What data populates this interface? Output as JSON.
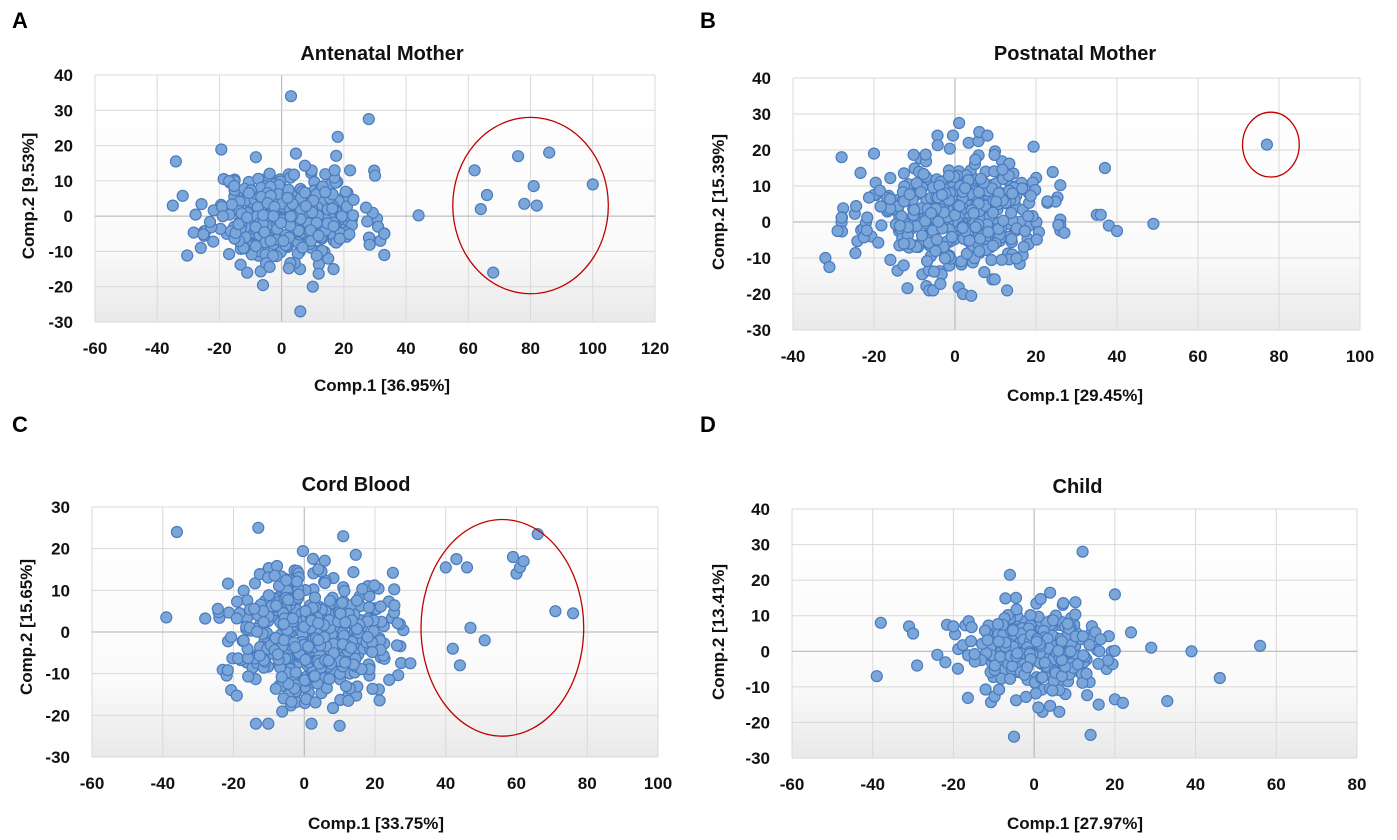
{
  "chart_data": [
    {
      "panel": "A",
      "type": "scatter",
      "title": "Antenatal Mother",
      "xlabel": "Comp.1 [36.95%]",
      "ylabel": "Comp.2 [9.53%]",
      "xlim": [
        -60,
        120
      ],
      "ylim": [
        -30,
        40
      ],
      "xticks": [
        -60,
        -40,
        -20,
        0,
        20,
        40,
        60,
        80,
        100,
        120
      ],
      "yticks": [
        -30,
        -20,
        -10,
        0,
        10,
        20,
        30,
        40
      ],
      "grid": true,
      "cluster": {
        "seed": 11,
        "n": 420,
        "cx": 2,
        "cy": 0,
        "sx": 12,
        "sy": 6.5,
        "xmin": -34,
        "xmax": 33,
        "ymin": -22,
        "ymax": 20
      },
      "points": [
        [
          3,
          34
        ],
        [
          28,
          27.5
        ],
        [
          18,
          22.5
        ],
        [
          -34,
          15.5
        ],
        [
          -35,
          3
        ],
        [
          44,
          0.2
        ],
        [
          31,
          -3
        ],
        [
          33,
          -5
        ],
        [
          33,
          -11
        ],
        [
          6,
          -27
        ],
        [
          10,
          -20
        ],
        [
          -26,
          -9
        ],
        [
          17,
          13
        ],
        [
          22,
          13
        ],
        [
          62,
          13
        ],
        [
          66,
          6
        ],
        [
          64,
          2
        ],
        [
          68,
          -16
        ],
        [
          76,
          17
        ],
        [
          78,
          3.5
        ],
        [
          81,
          8.5
        ],
        [
          82,
          3
        ],
        [
          86,
          18
        ],
        [
          100,
          9
        ]
      ],
      "highlight": {
        "cx": 80,
        "cy": 3,
        "rx": 25,
        "ry": 25
      },
      "marker_color": "#7aa6da",
      "marker_edge": "#4a7bbd",
      "highlight_color": "#c00000"
    },
    {
      "panel": "B",
      "type": "scatter",
      "title": "Postnatal Mother",
      "xlabel": "Comp.1 [29.45%]",
      "ylabel": "Comp.2 [15.39%]",
      "xlim": [
        -40,
        100
      ],
      "ylim": [
        -30,
        40
      ],
      "xticks": [
        -40,
        -20,
        0,
        20,
        40,
        60,
        80,
        100
      ],
      "yticks": [
        -30,
        -20,
        -10,
        0,
        10,
        20,
        30,
        40
      ],
      "grid": true,
      "cluster": {
        "seed": 23,
        "n": 460,
        "cx": 0,
        "cy": 2,
        "sx": 11,
        "sy": 8,
        "xmin": -28,
        "xmax": 26,
        "ymin": -19,
        "ymax": 24
      },
      "points": [
        [
          -32,
          -10
        ],
        [
          -31,
          -12.5
        ],
        [
          -29,
          -2.5
        ],
        [
          -28,
          18
        ],
        [
          -20,
          19
        ],
        [
          1,
          27.5
        ],
        [
          6,
          25
        ],
        [
          8,
          24
        ],
        [
          2,
          -20
        ],
        [
          4,
          -20.5
        ],
        [
          27,
          -3
        ],
        [
          35,
          2
        ],
        [
          36,
          2
        ],
        [
          37,
          15
        ],
        [
          38,
          -1
        ],
        [
          40,
          -2.5
        ],
        [
          49,
          -0.5
        ],
        [
          77,
          21.5
        ]
      ],
      "highlight": {
        "cx": 78,
        "cy": 21.5,
        "rx": 7,
        "ry": 9
      },
      "marker_color": "#7aa6da",
      "marker_edge": "#4a7bbd",
      "highlight_color": "#c00000"
    },
    {
      "panel": "C",
      "type": "scatter",
      "title": "Cord Blood",
      "xlabel": "Comp.1 [33.75%]",
      "ylabel": "Comp.2 [15.65%]",
      "xlim": [
        -60,
        100
      ],
      "ylim": [
        -30,
        30
      ],
      "xticks": [
        -60,
        -40,
        -20,
        0,
        20,
        40,
        60,
        80,
        100
      ],
      "yticks": [
        -30,
        -20,
        -10,
        0,
        10,
        20,
        30
      ],
      "grid": true,
      "cluster": {
        "seed": 37,
        "n": 480,
        "cx": 2,
        "cy": 0,
        "sx": 11,
        "sy": 8,
        "xmin": -28,
        "xmax": 28,
        "ymin": -22,
        "ymax": 22
      },
      "points": [
        [
          -39,
          3.5
        ],
        [
          -36,
          24
        ],
        [
          -13,
          25
        ],
        [
          11,
          23
        ],
        [
          30,
          -7.5
        ],
        [
          10,
          -22.5
        ],
        [
          40,
          15.5
        ],
        [
          42,
          -4
        ],
        [
          43,
          17.5
        ],
        [
          44,
          -8
        ],
        [
          46,
          15.5
        ],
        [
          47,
          1
        ],
        [
          51,
          -2
        ],
        [
          59,
          18
        ],
        [
          60,
          14
        ],
        [
          61,
          15.5
        ],
        [
          62,
          17
        ],
        [
          66,
          23.5
        ],
        [
          71,
          5
        ],
        [
          76,
          4.5
        ]
      ],
      "highlight": {
        "cx": 56,
        "cy": 1,
        "rx": 23,
        "ry": 26
      },
      "marker_color": "#7aa6da",
      "marker_edge": "#4a7bbd",
      "highlight_color": "#c00000"
    },
    {
      "panel": "D",
      "type": "scatter",
      "title": "Child",
      "xlabel": "Comp.1 [27.97%]",
      "ylabel": "Comp.2 [13.41%]",
      "xlim": [
        -60,
        80
      ],
      "ylim": [
        -30,
        40
      ],
      "xticks": [
        -60,
        -40,
        -20,
        0,
        20,
        40,
        60,
        80
      ],
      "yticks": [
        -30,
        -20,
        -10,
        0,
        10,
        20,
        30,
        40
      ],
      "grid": true,
      "cluster": {
        "seed": 53,
        "n": 330,
        "cx": 1,
        "cy": 0,
        "sx": 9,
        "sy": 6,
        "xmin": -22,
        "xmax": 24,
        "ymin": -17,
        "ymax": 17
      },
      "points": [
        [
          -39,
          -7
        ],
        [
          -38,
          8
        ],
        [
          -31,
          7
        ],
        [
          -30,
          5
        ],
        [
          -29,
          -4
        ],
        [
          -24,
          -1
        ],
        [
          -20,
          7
        ],
        [
          -5,
          -24
        ],
        [
          14,
          -23.5
        ],
        [
          -6,
          21.5
        ],
        [
          12,
          28
        ],
        [
          20,
          16
        ],
        [
          29,
          1
        ],
        [
          33,
          -14
        ],
        [
          39,
          0
        ],
        [
          46,
          -7.5
        ],
        [
          56,
          1.5
        ],
        [
          16,
          -15
        ],
        [
          20,
          -13.5
        ],
        [
          22,
          -14.5
        ]
      ],
      "marker_color": "#7aa6da",
      "marker_edge": "#4a7bbd"
    }
  ],
  "panel_labels": [
    "A",
    "B",
    "C",
    "D"
  ]
}
